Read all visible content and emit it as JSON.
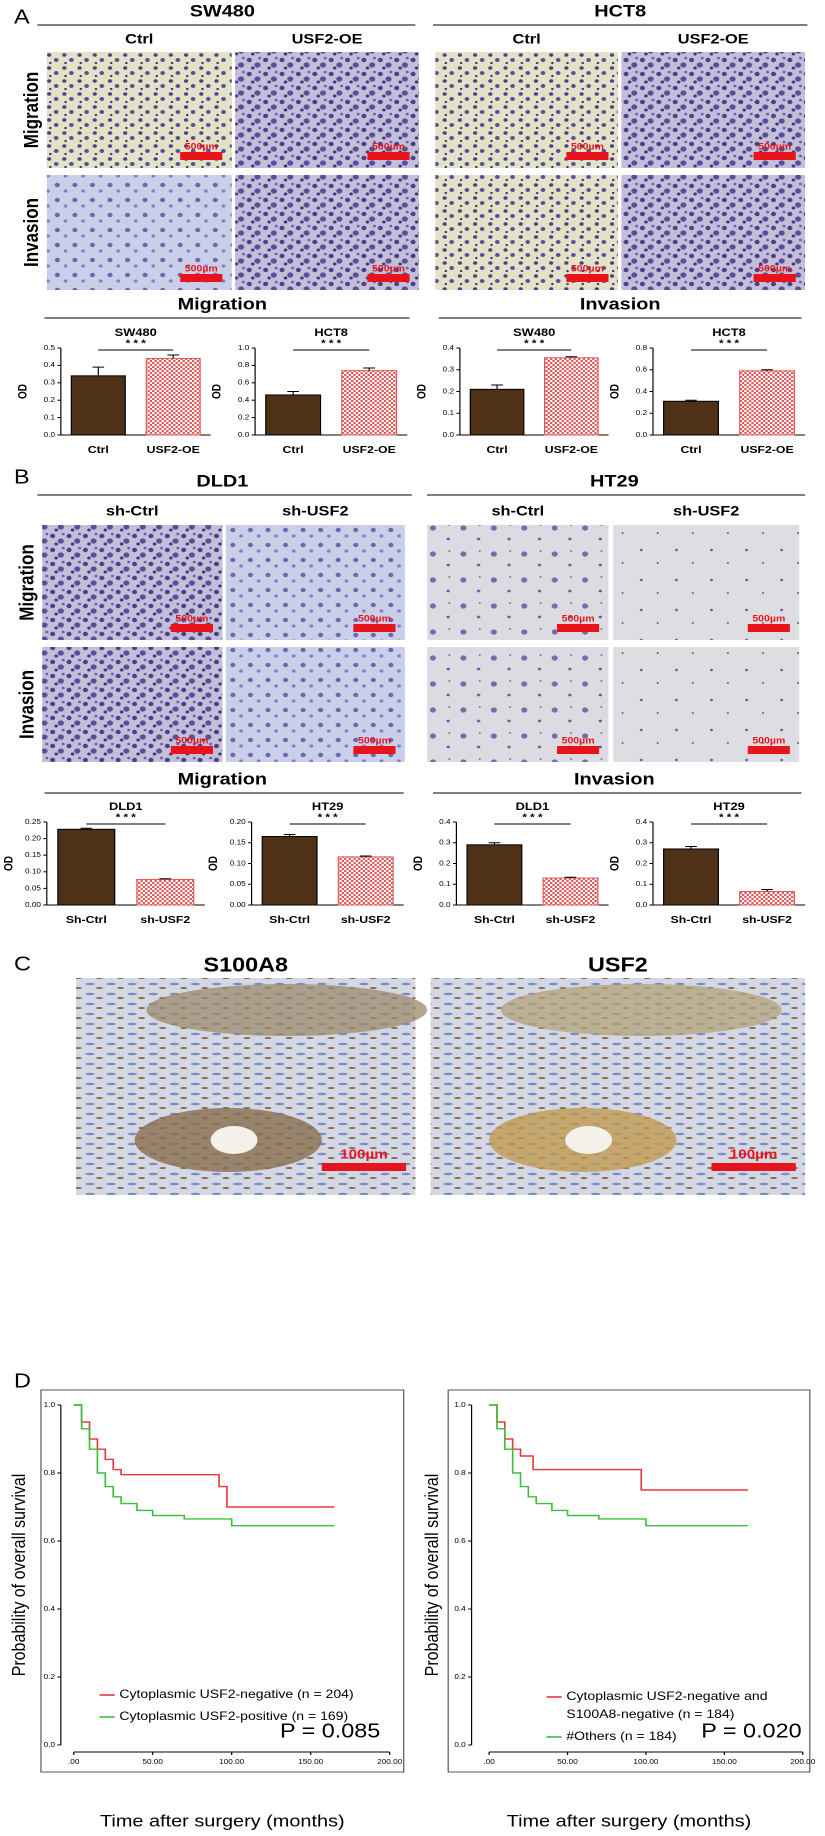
{
  "panel_a": {
    "label": "A",
    "cell_lines": [
      "SW480",
      "HCT8"
    ],
    "conditions": [
      "Ctrl",
      "USF2-OE"
    ],
    "assays": [
      "Migration",
      "Invasion"
    ],
    "scale_bar": "500µm"
  },
  "panel_b": {
    "label": "B",
    "cell_lines": [
      "DLD1",
      "HT29"
    ],
    "conditions": [
      "sh-Ctrl",
      "sh-USF2"
    ],
    "assays": [
      "Migration",
      "Invasion"
    ],
    "scale_bar": "500µm"
  },
  "panel_c": {
    "label": "C",
    "stains": [
      "S100A8",
      "USF2"
    ],
    "scale_bar": "100µm"
  },
  "panel_d": {
    "label": "D"
  },
  "chart_data": [
    {
      "type": "bar",
      "title": "SW480",
      "ylabel": "OD",
      "categories": [
        "Ctrl",
        "USF2-OE"
      ],
      "values": [
        0.34,
        0.44
      ],
      "errors": [
        0.05,
        0.02
      ],
      "ylim": [
        0,
        0.5
      ],
      "yticks": [
        {
          "value": 0,
          "label": "0.0"
        },
        0.1,
        0.2,
        0.3,
        0.4,
        0.5
      ],
      "colors": [
        "#4f3118",
        "#e05a5a"
      ],
      "patterns": [
        "solid",
        "checker"
      ],
      "significance": "* * *"
    },
    {
      "type": "bar",
      "title": "HCT8",
      "ylabel": "OD",
      "categories": [
        "Ctrl",
        "USF2-OE"
      ],
      "values": [
        0.46,
        0.74
      ],
      "errors": [
        0.04,
        0.03
      ],
      "ylim": [
        0,
        1
      ],
      "yticks": [
        {
          "value": 0,
          "label": "0.0"
        },
        0.2,
        0.4,
        0.6,
        0.8,
        {
          "value": 1,
          "label": "1.0"
        }
      ],
      "colors": [
        "#4f3118",
        "#e05a5a"
      ],
      "patterns": [
        "solid",
        "checker"
      ],
      "significance": "* * *"
    },
    {
      "type": "bar",
      "title": "SW480",
      "ylabel": "OD",
      "categories": [
        "Ctrl",
        "USF2-OE"
      ],
      "values": [
        0.21,
        0.355
      ],
      "errors": [
        0.02,
        0.005
      ],
      "ylim": [
        0,
        0.4
      ],
      "yticks": [
        {
          "value": 0,
          "label": "0.0"
        },
        0.1,
        0.2,
        0.3,
        0.4
      ],
      "colors": [
        "#4f3118",
        "#e05a5a"
      ],
      "patterns": [
        "solid",
        "checker"
      ],
      "significance": "* * *"
    },
    {
      "type": "bar",
      "title": "HCT8",
      "ylabel": "OD",
      "categories": [
        "Ctrl",
        "USF2-OE"
      ],
      "values": [
        0.31,
        0.59
      ],
      "errors": [
        0.01,
        0.01
      ],
      "ylim": [
        0,
        0.8
      ],
      "yticks": [
        {
          "value": 0,
          "label": "0.0"
        },
        0.2,
        0.4,
        0.6,
        0.8
      ],
      "colors": [
        "#4f3118",
        "#e05a5a"
      ],
      "patterns": [
        "solid",
        "checker"
      ],
      "significance": "* * *"
    },
    {
      "type": "bar",
      "title": "DLD1",
      "ylabel": "OD",
      "categories": [
        "Sh-Ctrl",
        "sh-USF2"
      ],
      "values": [
        0.228,
        0.077
      ],
      "errors": [
        0.003,
        0.002
      ],
      "ylim": [
        0,
        0.25
      ],
      "yticks": [
        {
          "value": 0,
          "label": "0.00"
        },
        0.05,
        {
          "value": 0.1,
          "label": "0.10"
        },
        0.15,
        {
          "value": 0.2,
          "label": "0.20"
        },
        0.25
      ],
      "colors": [
        "#4f3118",
        "#e05a5a"
      ],
      "patterns": [
        "solid",
        "checker"
      ],
      "significance": "* * *"
    },
    {
      "type": "bar",
      "title": "HT29",
      "ylabel": "OD",
      "categories": [
        "Sh-Ctrl",
        "sh-USF2"
      ],
      "values": [
        0.165,
        0.116
      ],
      "errors": [
        0.005,
        0.002
      ],
      "ylim": [
        0,
        0.2
      ],
      "yticks": [
        {
          "value": 0,
          "label": "0.00"
        },
        0.05,
        {
          "value": 0.1,
          "label": "0.10"
        },
        0.15,
        {
          "value": 0.2,
          "label": "0.20"
        }
      ],
      "colors": [
        "#4f3118",
        "#e05a5a"
      ],
      "patterns": [
        "solid",
        "checker"
      ],
      "significance": "* * *"
    },
    {
      "type": "bar",
      "title": "DLD1",
      "ylabel": "OD",
      "categories": [
        "Sh-Ctrl",
        "sh-USF2"
      ],
      "values": [
        0.29,
        0.13
      ],
      "errors": [
        0.01,
        0.004
      ],
      "ylim": [
        0,
        0.4
      ],
      "yticks": [
        {
          "value": 0,
          "label": "0.0"
        },
        0.1,
        0.2,
        0.3,
        0.4
      ],
      "colors": [
        "#4f3118",
        "#e05a5a"
      ],
      "patterns": [
        "solid",
        "checker"
      ],
      "significance": "* * *"
    },
    {
      "type": "bar",
      "title": "HT29",
      "ylabel": "OD",
      "categories": [
        "Sh-Ctrl",
        "sh-USF2"
      ],
      "values": [
        0.27,
        0.065
      ],
      "errors": [
        0.012,
        0.01
      ],
      "ylim": [
        0,
        0.4
      ],
      "yticks": [
        {
          "value": 0,
          "label": "0.0"
        },
        0.1,
        0.2,
        0.3,
        0.4
      ],
      "colors": [
        "#4f3118",
        "#e05a5a"
      ],
      "patterns": [
        "solid",
        "checker"
      ],
      "significance": "* * *"
    },
    {
      "type": "line",
      "xlabel": "Time after surgery (months)",
      "ylabel": "Probability of overall survival",
      "xlim": [
        0,
        200
      ],
      "ylim": [
        0,
        1
      ],
      "xticks": [
        {
          "value": 0,
          "label": ".00"
        },
        {
          "value": 50,
          "label": "50.00"
        },
        {
          "value": 100,
          "label": "100.00"
        },
        {
          "value": 150,
          "label": "150.00"
        },
        {
          "value": 200,
          "label": "200.00"
        }
      ],
      "yticks": [
        {
          "value": 0,
          "label": "0.0"
        },
        0.2,
        0.4,
        0.6,
        0.8,
        {
          "value": 1,
          "label": "1.0"
        }
      ],
      "series": [
        {
          "name": "Cytoplasmic USF2-negative (n = 204)",
          "color": "#e8393a",
          "x": [
            0,
            5,
            10,
            15,
            20,
            25,
            30,
            88,
            92,
            97,
            165
          ],
          "values": [
            1,
            0.95,
            0.9,
            0.87,
            0.84,
            0.81,
            0.795,
            0.795,
            0.76,
            0.7,
            0.7
          ]
        },
        {
          "name": "Cytoplasmic USF2-positive (n = 169)",
          "color": "#3cbf3c",
          "x": [
            0,
            5,
            10,
            15,
            20,
            25,
            30,
            40,
            50,
            70,
            100,
            165
          ],
          "values": [
            1,
            0.93,
            0.87,
            0.8,
            0.76,
            0.73,
            0.71,
            0.69,
            0.675,
            0.665,
            0.645,
            0.645
          ]
        }
      ],
      "annotation": "P = 0.085",
      "legend": "bottom-left"
    },
    {
      "type": "line",
      "xlabel": "Time after surgery (months)",
      "ylabel": "Probability of overall survival",
      "xlim": [
        0,
        200
      ],
      "ylim": [
        0,
        1
      ],
      "xticks": [
        {
          "value": 0,
          "label": ".00"
        },
        {
          "value": 50,
          "label": "50.00"
        },
        {
          "value": 100,
          "label": "100.00"
        },
        {
          "value": 150,
          "label": "150.00"
        },
        {
          "value": 200,
          "label": "200.00"
        }
      ],
      "yticks": [
        {
          "value": 0,
          "label": "0.0"
        },
        0.2,
        0.4,
        0.6,
        0.8,
        {
          "value": 1,
          "label": "1.0"
        }
      ],
      "series": [
        {
          "name": [
            "Cytoplasmic USF2-negative and",
            "S100A8-negative (n = 184)"
          ],
          "color": "#e8393a",
          "x": [
            0,
            5,
            10,
            15,
            20,
            28,
            95,
            97,
            165
          ],
          "values": [
            1,
            0.95,
            0.9,
            0.87,
            0.85,
            0.81,
            0.81,
            0.75,
            0.75
          ]
        },
        {
          "name": "#Others (n = 184)",
          "color": "#3cbf3c",
          "x": [
            0,
            5,
            10,
            15,
            20,
            25,
            30,
            40,
            50,
            70,
            100,
            165
          ],
          "values": [
            1,
            0.93,
            0.87,
            0.8,
            0.76,
            0.73,
            0.71,
            0.69,
            0.675,
            0.665,
            0.645,
            0.645
          ]
        }
      ],
      "annotation": "P = 0.020",
      "legend": "bottom-left"
    }
  ]
}
